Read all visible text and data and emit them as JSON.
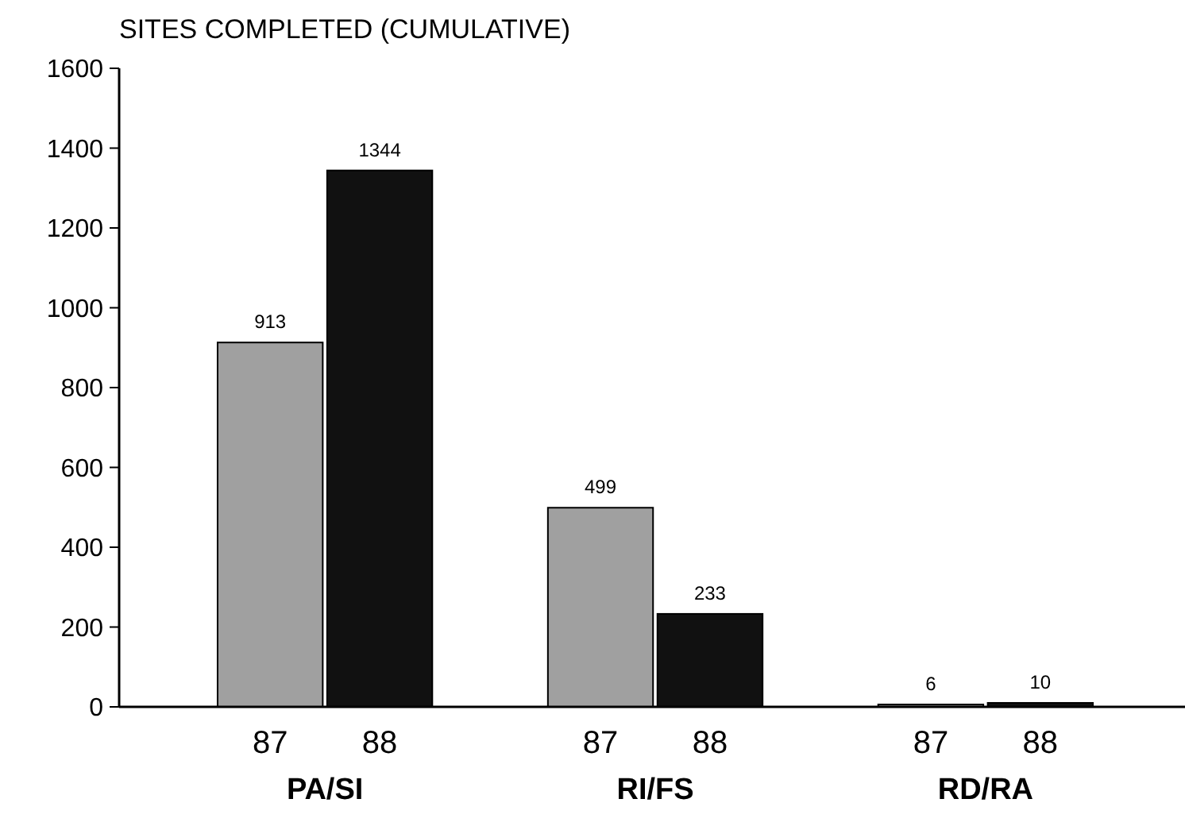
{
  "chart_data": {
    "type": "bar",
    "title": "SITES COMPLETED (CUMULATIVE)",
    "categories": [
      "PA/SI",
      "RI/FS",
      "RD/RA"
    ],
    "series": [
      {
        "name": "87",
        "color": "#a0a0a0",
        "values": [
          913,
          499,
          6
        ]
      },
      {
        "name": "88",
        "color": "#111111",
        "values": [
          1344,
          233,
          10
        ]
      }
    ],
    "ylim": [
      0,
      1600
    ],
    "yticks": [
      0,
      200,
      400,
      600,
      800,
      1000,
      1200,
      1400,
      1600
    ],
    "data_labels": true,
    "grid": false
  }
}
